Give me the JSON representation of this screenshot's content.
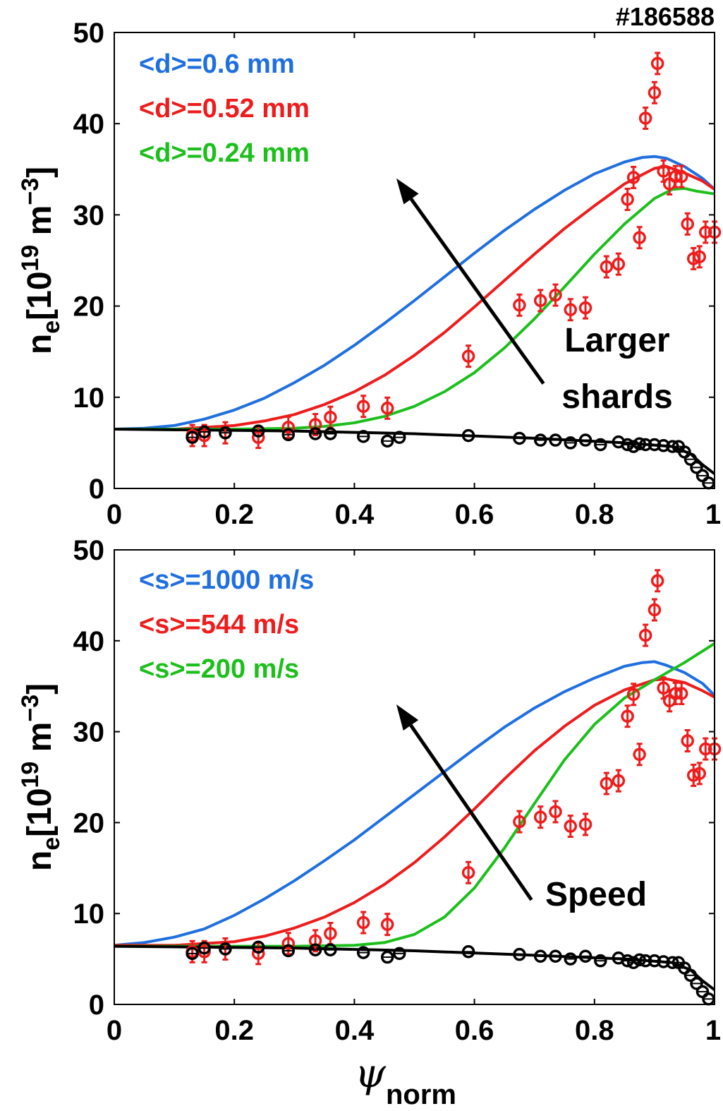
{
  "shot_label": "#186588",
  "colors": {
    "blue": "#1f6fe0",
    "red": "#ee1c1c",
    "green": "#1cbf1c",
    "black": "#000000"
  },
  "chart_data": [
    {
      "type": "line",
      "xlim": [
        0,
        1
      ],
      "ylim": [
        0,
        50
      ],
      "xticks": [
        "0",
        "0.2",
        "0.4",
        "0.6",
        "0.8",
        "1"
      ],
      "yticks": [
        "0",
        "10",
        "20",
        "30",
        "40",
        "50"
      ],
      "ylabel": {
        "base": "n",
        "sub": "e",
        "bracket_open": "[10",
        "sup1": "19",
        "mid": " m",
        "sup2": "−3",
        "bracket_close": "]"
      },
      "legend": [
        "<d>=0.6 mm",
        "<d>=0.52 mm",
        "<d>=0.24 mm"
      ],
      "annotation": [
        "Larger",
        "shards"
      ],
      "arrow": {
        "from": [
          0.715,
          11.5
        ],
        "to": [
          0.47,
          34
        ]
      },
      "series": [
        {
          "name": "<d>=0.6 mm",
          "color": "blue",
          "x": [
            0,
            0.05,
            0.1,
            0.15,
            0.2,
            0.25,
            0.3,
            0.35,
            0.4,
            0.45,
            0.5,
            0.55,
            0.6,
            0.65,
            0.7,
            0.75,
            0.8,
            0.85,
            0.88,
            0.9,
            0.92,
            0.95,
            0.98,
            1.0
          ],
          "y": [
            6.5,
            6.6,
            6.9,
            7.6,
            8.6,
            9.9,
            11.6,
            13.5,
            15.7,
            18.1,
            20.6,
            23.2,
            25.8,
            28.3,
            30.6,
            32.7,
            34.5,
            35.8,
            36.3,
            36.4,
            36.2,
            35.3,
            34.0,
            32.8
          ]
        },
        {
          "name": "<d>=0.52 mm",
          "color": "red",
          "x": [
            0,
            0.1,
            0.2,
            0.25,
            0.3,
            0.35,
            0.4,
            0.45,
            0.5,
            0.55,
            0.6,
            0.65,
            0.7,
            0.75,
            0.8,
            0.85,
            0.9,
            0.92,
            0.95,
            0.98,
            1.0
          ],
          "y": [
            6.5,
            6.5,
            6.9,
            7.4,
            8.1,
            9.2,
            10.6,
            12.4,
            14.6,
            17.1,
            19.9,
            22.8,
            25.7,
            28.5,
            31.0,
            33.4,
            35.1,
            35.3,
            34.6,
            33.7,
            32.8
          ]
        },
        {
          "name": "<d>=0.24 mm",
          "color": "green",
          "x": [
            0,
            0.2,
            0.3,
            0.35,
            0.4,
            0.45,
            0.5,
            0.55,
            0.6,
            0.65,
            0.7,
            0.75,
            0.8,
            0.85,
            0.9,
            0.93,
            0.95,
            0.97,
            1.0
          ],
          "y": [
            6.5,
            6.5,
            6.6,
            6.8,
            7.2,
            7.9,
            9.0,
            10.6,
            12.7,
            15.4,
            18.6,
            22.1,
            25.7,
            29.0,
            31.8,
            32.8,
            32.9,
            32.6,
            32.3
          ]
        },
        {
          "name": "",
          "color": "black",
          "x": [
            0,
            0.3,
            0.5,
            0.7,
            0.85,
            0.93,
            0.96,
            0.98,
            1.0
          ],
          "y": [
            6.5,
            6.3,
            6.0,
            5.5,
            5.0,
            4.6,
            3.8,
            2.6,
            1.6
          ]
        }
      ],
      "scatter": [
        {
          "color": "red",
          "errorbars": true,
          "x": [
            0.13,
            0.15,
            0.185,
            0.24,
            0.29,
            0.335,
            0.36,
            0.415,
            0.455,
            0.59,
            0.675,
            0.71,
            0.735,
            0.76,
            0.785,
            0.82,
            0.84,
            0.855,
            0.865,
            0.875,
            0.885,
            0.9,
            0.905,
            0.915,
            0.925,
            0.935,
            0.945,
            0.955,
            0.965,
            0.975,
            0.985,
            1.0
          ],
          "y": [
            5.8,
            5.8,
            6.1,
            5.6,
            6.7,
            7.0,
            7.8,
            9.0,
            8.8,
            14.5,
            20.1,
            20.6,
            21.2,
            19.6,
            19.8,
            24.3,
            24.6,
            31.7,
            34.1,
            27.5,
            40.6,
            43.4,
            46.6,
            34.8,
            33.4,
            34.2,
            34.2,
            29.0,
            25.2,
            25.4,
            28.1,
            28.1
          ]
        },
        {
          "color": "black",
          "errorbars": false,
          "x": [
            0.13,
            0.15,
            0.185,
            0.24,
            0.29,
            0.335,
            0.36,
            0.415,
            0.455,
            0.475,
            0.59,
            0.675,
            0.71,
            0.735,
            0.76,
            0.785,
            0.81,
            0.84,
            0.855,
            0.865,
            0.875,
            0.885,
            0.9,
            0.915,
            0.93,
            0.94,
            0.95,
            0.96,
            0.97,
            0.98,
            0.99
          ],
          "y": [
            5.6,
            6.2,
            6.1,
            6.3,
            5.9,
            6.0,
            6.0,
            5.7,
            5.2,
            5.6,
            5.8,
            5.5,
            5.3,
            5.3,
            5.0,
            5.3,
            4.8,
            5.1,
            4.8,
            4.6,
            4.9,
            4.8,
            4.8,
            4.7,
            4.6,
            4.6,
            4.0,
            3.2,
            2.3,
            1.4,
            0.6
          ]
        }
      ]
    },
    {
      "type": "line",
      "xlim": [
        0,
        1
      ],
      "ylim": [
        0,
        50
      ],
      "xticks": [
        "0",
        "0.2",
        "0.4",
        "0.6",
        "0.8",
        "1"
      ],
      "yticks": [
        "0",
        "10",
        "20",
        "30",
        "40",
        "50"
      ],
      "ylabel": {
        "base": "n",
        "sub": "e",
        "bracket_open": "[10",
        "sup1": "19",
        "mid": " m",
        "sup2": "−3",
        "bracket_close": "]"
      },
      "xlabel": {
        "base": "ψ",
        "sub": "norm"
      },
      "legend": [
        "<s>=1000 m/s",
        "<s>=544 m/s",
        "<s>=200 m/s"
      ],
      "annotation": [
        "Speed"
      ],
      "arrow": {
        "from": [
          0.695,
          11.5
        ],
        "to": [
          0.47,
          33
        ]
      },
      "series": [
        {
          "name": "<s>=1000 m/s",
          "color": "blue",
          "x": [
            0,
            0.05,
            0.1,
            0.15,
            0.2,
            0.25,
            0.3,
            0.35,
            0.4,
            0.45,
            0.5,
            0.55,
            0.6,
            0.65,
            0.7,
            0.75,
            0.8,
            0.85,
            0.88,
            0.9,
            0.92,
            0.95,
            0.98,
            1.0
          ],
          "y": [
            6.5,
            6.8,
            7.4,
            8.3,
            9.8,
            11.6,
            13.6,
            15.8,
            18.1,
            20.6,
            23.1,
            25.6,
            28.1,
            30.5,
            32.6,
            34.4,
            35.9,
            37.2,
            37.6,
            37.7,
            37.3,
            36.5,
            35.3,
            34.0
          ]
        },
        {
          "name": "<s>=544 m/s",
          "color": "red",
          "x": [
            0,
            0.1,
            0.2,
            0.25,
            0.3,
            0.35,
            0.4,
            0.45,
            0.5,
            0.55,
            0.6,
            0.65,
            0.7,
            0.75,
            0.8,
            0.85,
            0.9,
            0.92,
            0.95,
            0.98,
            1.0
          ],
          "y": [
            6.5,
            6.5,
            6.9,
            7.5,
            8.4,
            9.6,
            11.2,
            13.2,
            15.6,
            18.4,
            21.5,
            24.8,
            27.9,
            30.6,
            32.9,
            34.6,
            35.7,
            35.8,
            35.4,
            34.5,
            33.8
          ]
        },
        {
          "name": "<s>=200 m/s",
          "color": "green",
          "x": [
            0,
            0.3,
            0.4,
            0.45,
            0.5,
            0.55,
            0.6,
            0.65,
            0.7,
            0.75,
            0.8,
            0.85,
            0.9,
            0.95,
            1.0
          ],
          "y": [
            6.4,
            6.4,
            6.5,
            6.8,
            7.7,
            9.6,
            12.8,
            17.2,
            22.1,
            26.9,
            30.8,
            33.7,
            35.7,
            37.6,
            39.7
          ]
        },
        {
          "name": "",
          "color": "black",
          "x": [
            0,
            0.3,
            0.5,
            0.7,
            0.85,
            0.93,
            0.96,
            0.98,
            1.0
          ],
          "y": [
            6.4,
            6.2,
            5.9,
            5.4,
            5.0,
            4.6,
            3.8,
            2.6,
            1.6
          ]
        }
      ],
      "scatter": [
        {
          "color": "red",
          "errorbars": true,
          "x": [
            0.13,
            0.15,
            0.185,
            0.24,
            0.29,
            0.335,
            0.36,
            0.415,
            0.455,
            0.59,
            0.675,
            0.71,
            0.735,
            0.76,
            0.785,
            0.82,
            0.84,
            0.855,
            0.865,
            0.875,
            0.885,
            0.9,
            0.905,
            0.915,
            0.925,
            0.935,
            0.945,
            0.955,
            0.965,
            0.975,
            0.985,
            1.0
          ],
          "y": [
            5.8,
            5.8,
            6.1,
            5.6,
            6.7,
            7.0,
            7.8,
            9.0,
            8.8,
            14.5,
            20.1,
            20.6,
            21.2,
            19.6,
            19.8,
            24.3,
            24.6,
            31.7,
            34.1,
            27.5,
            40.6,
            43.4,
            46.6,
            34.8,
            33.4,
            34.2,
            34.2,
            29.0,
            25.2,
            25.4,
            28.1,
            28.1
          ]
        },
        {
          "color": "black",
          "errorbars": false,
          "x": [
            0.13,
            0.15,
            0.185,
            0.24,
            0.29,
            0.335,
            0.36,
            0.415,
            0.455,
            0.475,
            0.59,
            0.675,
            0.71,
            0.735,
            0.76,
            0.785,
            0.81,
            0.84,
            0.855,
            0.865,
            0.875,
            0.885,
            0.9,
            0.915,
            0.93,
            0.94,
            0.95,
            0.96,
            0.97,
            0.98,
            0.99
          ],
          "y": [
            5.6,
            6.2,
            6.1,
            6.3,
            5.9,
            6.0,
            6.0,
            5.7,
            5.2,
            5.6,
            5.8,
            5.5,
            5.3,
            5.3,
            5.0,
            5.3,
            4.8,
            5.1,
            4.8,
            4.6,
            4.9,
            4.8,
            4.8,
            4.7,
            4.6,
            4.6,
            4.0,
            3.2,
            2.3,
            1.4,
            0.6
          ]
        }
      ]
    }
  ]
}
